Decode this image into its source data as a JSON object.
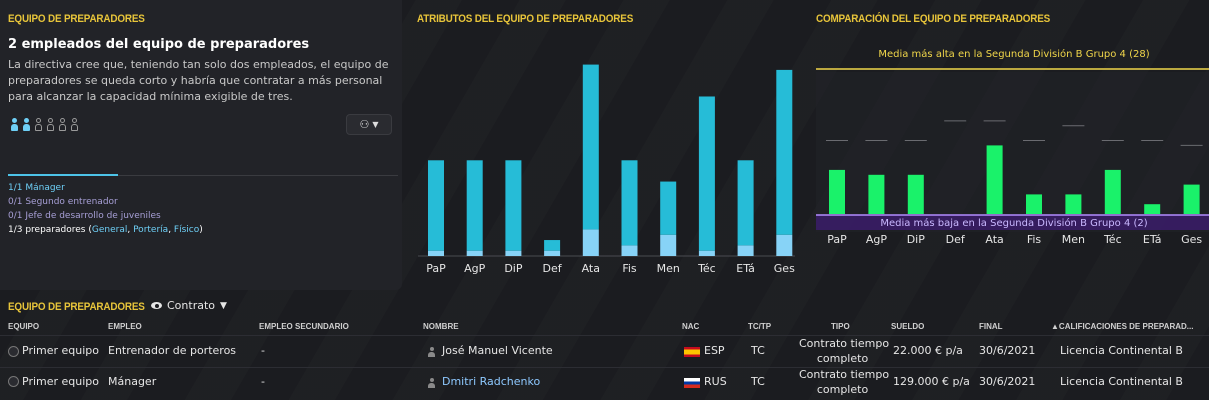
{
  "left_panel": {
    "title": "EQUIPO DE PREPARADORES",
    "heading": "2 empleados del equipo de preparadores",
    "description": "La directiva cree que, teniendo tan solo dos empleados, el equipo de preparadores se queda corto y habría que contratar a más personal para alcanzar la capacidad mínima exigible de tres.",
    "people_filled": 2,
    "people_total": 6,
    "hire_button_icon": "add-staff-icon",
    "roles": {
      "manager": "1/1 Mánager",
      "assistant": "0/1 Segundo entrenador",
      "youth": "0/1 Jefe de desarrollo de juveniles",
      "coaches_prefix": "1/3 preparadores (",
      "coach_general": "General",
      "coach_porteria": "Portería",
      "coach_fisico": "Físico",
      "coaches_suffix": ")"
    }
  },
  "chart_data": [
    {
      "type": "bar",
      "title": "ATRIBUTOS DEL EQUIPO DE PREPARADORES",
      "categories": [
        "PaP",
        "AgP",
        "DiP",
        "Def",
        "Ata",
        "Fis",
        "Men",
        "Téc",
        "ETá",
        "Ges"
      ],
      "series": [
        {
          "values": [
            1,
            1,
            1,
            1,
            5,
            2,
            4,
            1,
            2,
            4
          ],
          "color": "#87d3f7"
        },
        {
          "values": [
            17,
            17,
            17,
            2,
            31,
            16,
            10,
            29,
            16,
            31
          ],
          "color": "#26bcd7"
        }
      ],
      "stacked": true,
      "ylim": [
        0,
        41
      ],
      "grid": false
    },
    {
      "type": "bar",
      "title": "COMPARACIÓN DEL EQUIPO DE PREPARADORES",
      "categories": [
        "PaP",
        "AgP",
        "DiP",
        "Def",
        "Ata",
        "Fis",
        "Men",
        "Téc",
        "ETá",
        "Ges"
      ],
      "values": [
        9,
        8,
        8,
        0,
        14,
        4,
        4,
        9,
        2,
        6
      ],
      "best_marks": [
        15,
        15,
        15,
        19,
        19,
        15,
        18,
        15,
        15,
        14
      ],
      "ylim": [
        0,
        20
      ],
      "annotation_top": "Media más alta en la Segunda División B Grupo 4 (28)",
      "annotation_bottom": "Media más baja en la Segunda División B Grupo 4 (2)",
      "bar_color": "#1af26a",
      "grid": false
    }
  ],
  "table": {
    "title": "EQUIPO DE PREPARADORES",
    "view_label": "Contrato",
    "columns": {
      "equipo": "EQUIPO",
      "empleo": "EMPLEO",
      "empleo_sec": "EMPLEO SECUNDARIO",
      "nombre": "NOMBRE",
      "nac": "NAC",
      "tctp": "TC/TP",
      "tipo": "TIPO",
      "sueldo": "SUELDO",
      "final": "FINAL",
      "calif": "▲CALIFICACIONES DE PREPARAD..."
    },
    "rows": [
      {
        "equipo": "Primer equipo",
        "empleo": "Entrenador de porteros",
        "empleo_sec": "-",
        "nombre": "José Manuel Vicente",
        "nac": "ESP",
        "tctp": "TC",
        "tipo_line1": "Contrato tiempo",
        "tipo_line2": "completo",
        "sueldo": "22.000 € p/a",
        "final": "30/6/2021",
        "calif": "Licencia Continental B"
      },
      {
        "equipo": "Primer equipo",
        "empleo": "Mánager",
        "empleo_sec": "-",
        "nombre": "Dmitri Radchenko",
        "nac": "RUS",
        "tctp": "TC",
        "tipo_line1": "Contrato tiempo",
        "tipo_line2": "completo",
        "sueldo": "129.000 € p/a",
        "final": "30/6/2021",
        "calif": "Licencia Continental B"
      }
    ]
  }
}
